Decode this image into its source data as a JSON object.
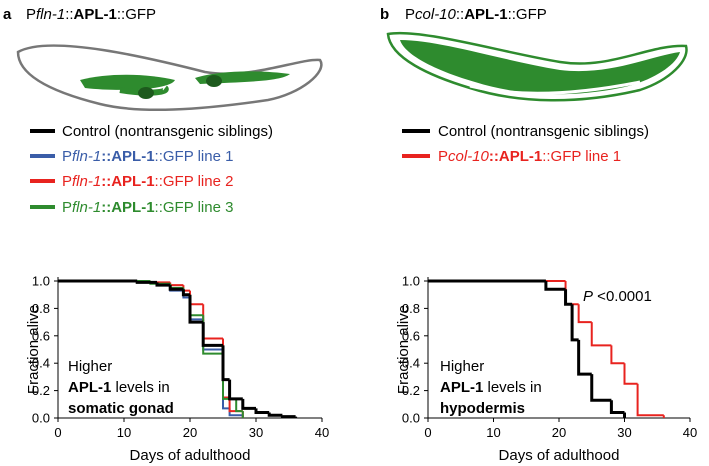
{
  "chart_data": [
    {
      "type": "line",
      "drawstyle": "steps-post",
      "panel_label": "a",
      "title": [
        "P",
        "fln-1",
        "::",
        "APL-1",
        "::GFP"
      ],
      "xlabel": "Days of adulthood",
      "ylabel": "Fraction alive",
      "xlim": [
        0,
        40
      ],
      "xticks": [
        0,
        10,
        20,
        30,
        40
      ],
      "ylim": [
        0,
        1
      ],
      "yticks": [
        {
          "value": 0,
          "label": "0.0"
        },
        0.2,
        0.4,
        0.6,
        0.8,
        {
          "value": 1,
          "label": "1.0"
        }
      ],
      "annotation": [
        [
          "Higher"
        ],
        [
          "APL-1",
          " levels in"
        ],
        [
          "somatic gonad"
        ]
      ],
      "series": [
        {
          "name": "Control (nontransgenic siblings)",
          "color": "#000000",
          "x": [
            0,
            12,
            15,
            17,
            19,
            20,
            22,
            25,
            26,
            28,
            30,
            32,
            34,
            36
          ],
          "values": [
            1.0,
            0.99,
            0.97,
            0.94,
            0.9,
            0.7,
            0.53,
            0.28,
            0.14,
            0.07,
            0.04,
            0.02,
            0.01,
            0.0
          ]
        },
        {
          "name": [
            "P",
            "fln-1",
            "::APL-1",
            "::GFP line 1"
          ],
          "color": "#3a5da8",
          "x": [
            0,
            12,
            15,
            17,
            19,
            20,
            22,
            25,
            26,
            28
          ],
          "values": [
            1.0,
            0.99,
            0.97,
            0.93,
            0.88,
            0.72,
            0.5,
            0.07,
            0.02,
            0.0
          ]
        },
        {
          "name": [
            "P",
            "fln-1",
            "::APL-1",
            "::GFP line 2"
          ],
          "color": "#e8231f",
          "x": [
            0,
            14,
            17,
            19,
            20,
            22,
            25,
            26,
            28
          ],
          "values": [
            1.0,
            0.99,
            0.97,
            0.93,
            0.83,
            0.58,
            0.15,
            0.05,
            0.0
          ]
        },
        {
          "name": [
            "P",
            "fln-1",
            "::APL-1",
            "::GFP line 3"
          ],
          "color": "#2e8b2e",
          "x": [
            0,
            14,
            17,
            19,
            20,
            22,
            25,
            27,
            28
          ],
          "values": [
            1.0,
            0.98,
            0.95,
            0.9,
            0.75,
            0.47,
            0.14,
            0.05,
            0.0
          ]
        }
      ]
    },
    {
      "type": "line",
      "drawstyle": "steps-post",
      "panel_label": "b",
      "title": [
        "P",
        "col-10",
        "::",
        "APL-1",
        "::GFP"
      ],
      "xlabel": "Days of adulthood",
      "ylabel": "Fraction alive",
      "xlim": [
        0,
        40
      ],
      "xticks": [
        0,
        10,
        20,
        30,
        40
      ],
      "ylim": [
        0,
        1
      ],
      "yticks": [
        {
          "value": 0,
          "label": "0.0"
        },
        0.2,
        0.4,
        0.6,
        0.8,
        {
          "value": 1,
          "label": "1.0"
        }
      ],
      "annotation": [
        [
          "Higher"
        ],
        [
          "APL-1",
          " levels in"
        ],
        [
          "hypodermis"
        ]
      ],
      "pvalue": [
        "P",
        " <0.0001"
      ],
      "series": [
        {
          "name": "Control (nontransgenic siblings)",
          "color": "#000000",
          "x": [
            0,
            18,
            21,
            22,
            23,
            25,
            28,
            30
          ],
          "values": [
            1.0,
            0.94,
            0.83,
            0.57,
            0.32,
            0.13,
            0.04,
            0.0
          ]
        },
        {
          "name": [
            "P",
            "col-10",
            "::APL-1",
            "::GFP line 1"
          ],
          "color": "#e8231f",
          "x": [
            0,
            21,
            23,
            25,
            28,
            30,
            32,
            36
          ],
          "values": [
            1.0,
            0.83,
            0.7,
            0.53,
            0.4,
            0.25,
            0.02,
            0.0
          ]
        }
      ]
    }
  ]
}
